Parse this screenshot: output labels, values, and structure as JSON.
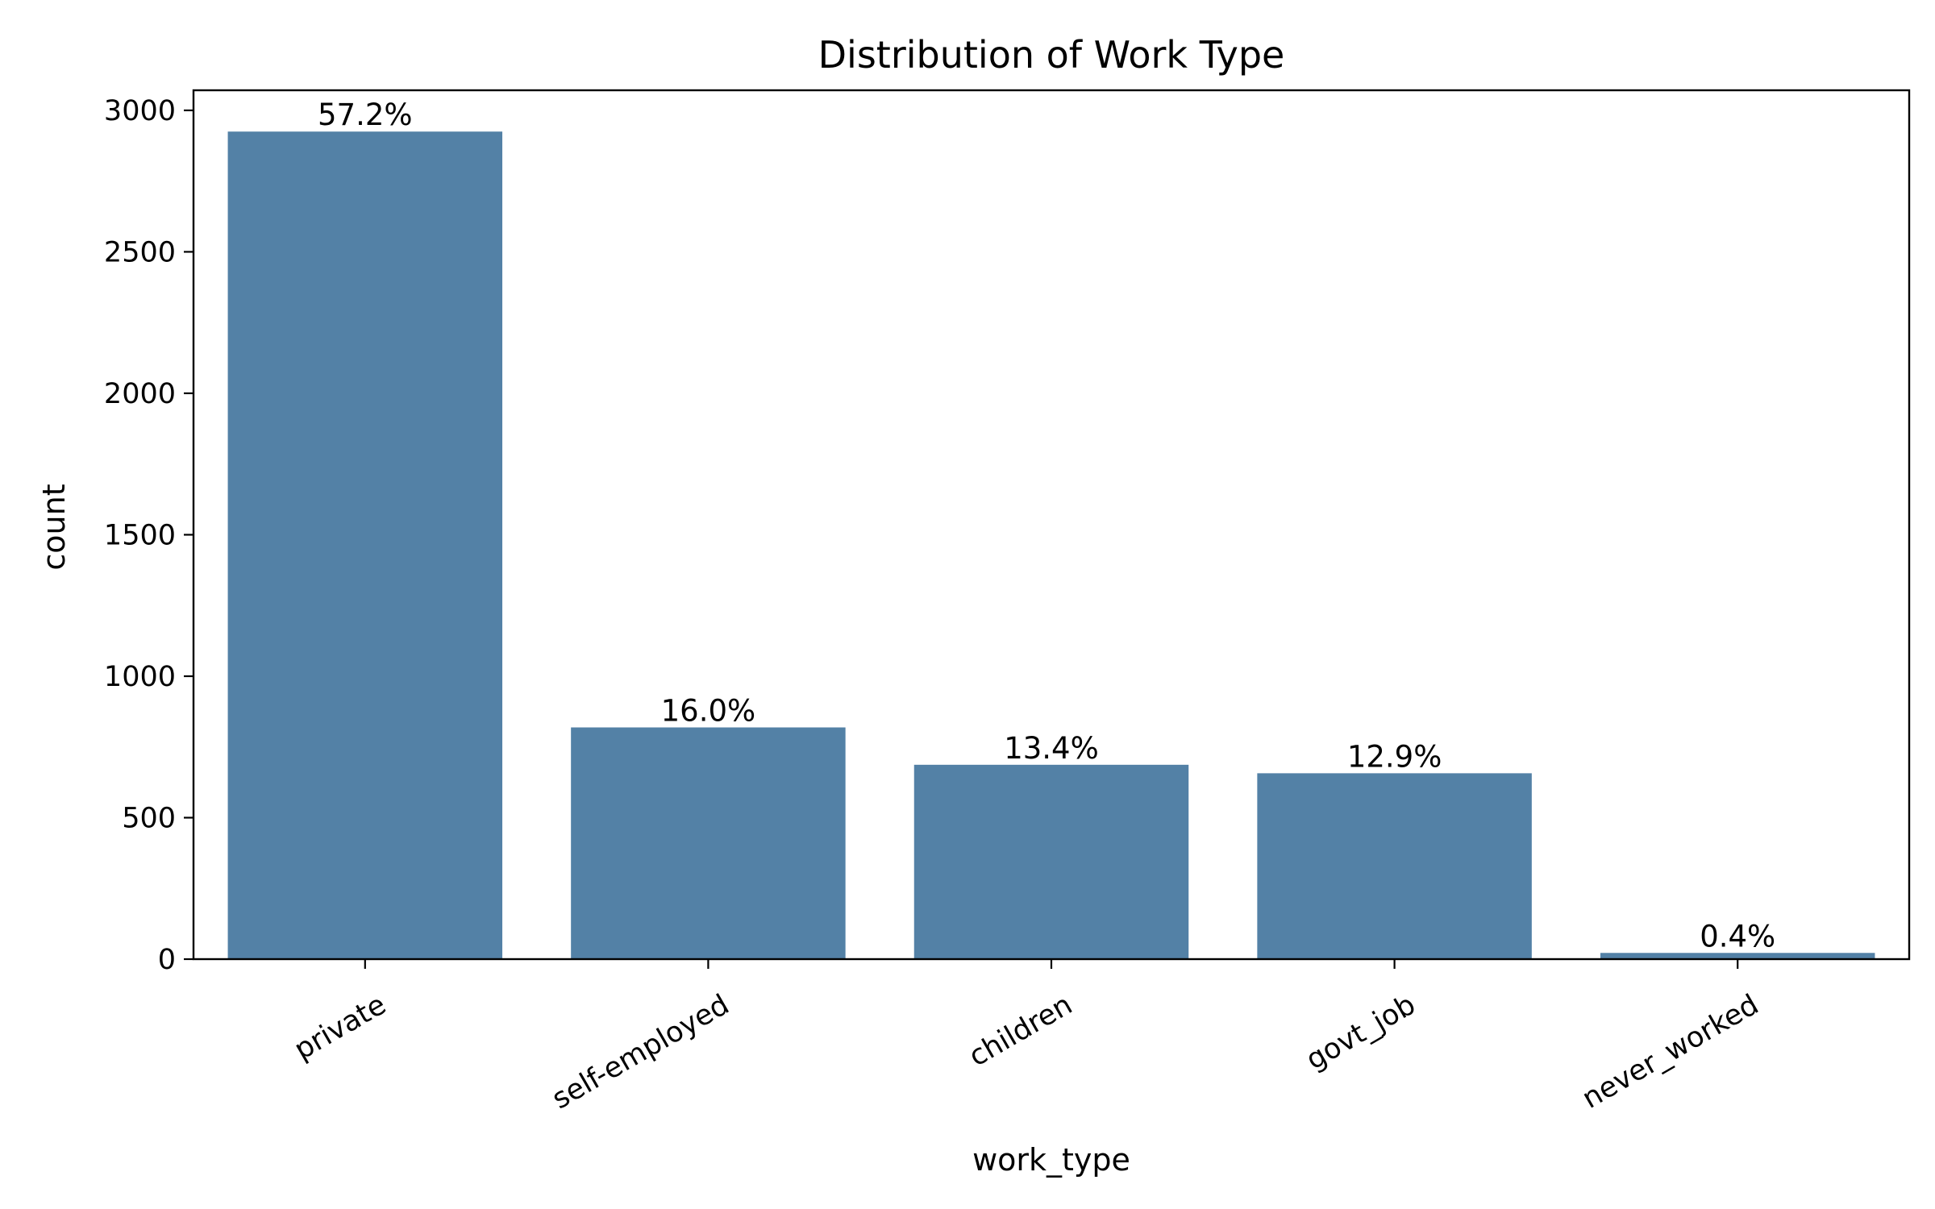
{
  "chart_data": {
    "type": "bar",
    "title": "Distribution of Work Type",
    "xlabel": "work_type",
    "ylabel": "count",
    "categories": [
      "private",
      "self-employed",
      "children",
      "govt_job",
      "never_worked"
    ],
    "values": [
      2925,
      819,
      687,
      657,
      22
    ],
    "data_labels": [
      "57.2%",
      "16.0%",
      "13.4%",
      "12.9%",
      "0.4%"
    ],
    "yticks": [
      0,
      500,
      1000,
      1500,
      2000,
      2500,
      3000
    ],
    "ylim": [
      0,
      3071
    ],
    "bar_color": "#5381a6",
    "grid": false,
    "legend": "none"
  }
}
